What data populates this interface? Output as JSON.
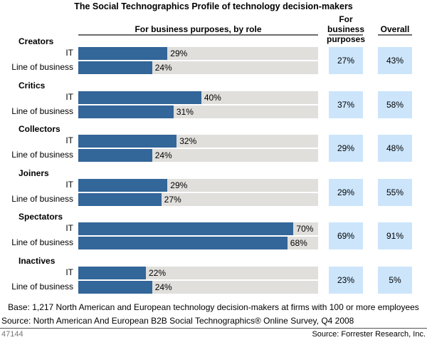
{
  "chart_data": {
    "type": "bar",
    "orientation": "horizontal",
    "title": "The Social Technographics Profile of technology decision-makers",
    "column_headers": {
      "by_role": "For business purposes, by role",
      "business": "For business purposes",
      "overall": "Overall"
    },
    "value_suffix": "%",
    "xlim": [
      0,
      78
    ],
    "roles": [
      "IT",
      "Line of business"
    ],
    "groups": [
      {
        "name": "Creators",
        "it": 29,
        "lob": 24,
        "business": 27,
        "overall": 43
      },
      {
        "name": "Critics",
        "it": 40,
        "lob": 31,
        "business": 37,
        "overall": 58
      },
      {
        "name": "Collectors",
        "it": 32,
        "lob": 24,
        "business": 29,
        "overall": 48
      },
      {
        "name": "Joiners",
        "it": 29,
        "lob": 27,
        "business": 29,
        "overall": 55
      },
      {
        "name": "Spectators",
        "it": 70,
        "lob": 68,
        "business": 69,
        "overall": 91
      },
      {
        "name": "Inactives",
        "it": 22,
        "lob": 24,
        "business": 23,
        "overall": 5
      }
    ],
    "colors": {
      "bar": "#336699",
      "track": "#e0dfdc",
      "box": "#cce5fb"
    }
  },
  "footer": {
    "base": "Base: 1,217 North American and European technology decision-makers at firms with 100 or more employees",
    "source": "Source: North American And European B2B Social Technographics® Online Survey, Q4 2008",
    "figure_id": "47144",
    "credit": "Source: Forrester Research, Inc."
  }
}
